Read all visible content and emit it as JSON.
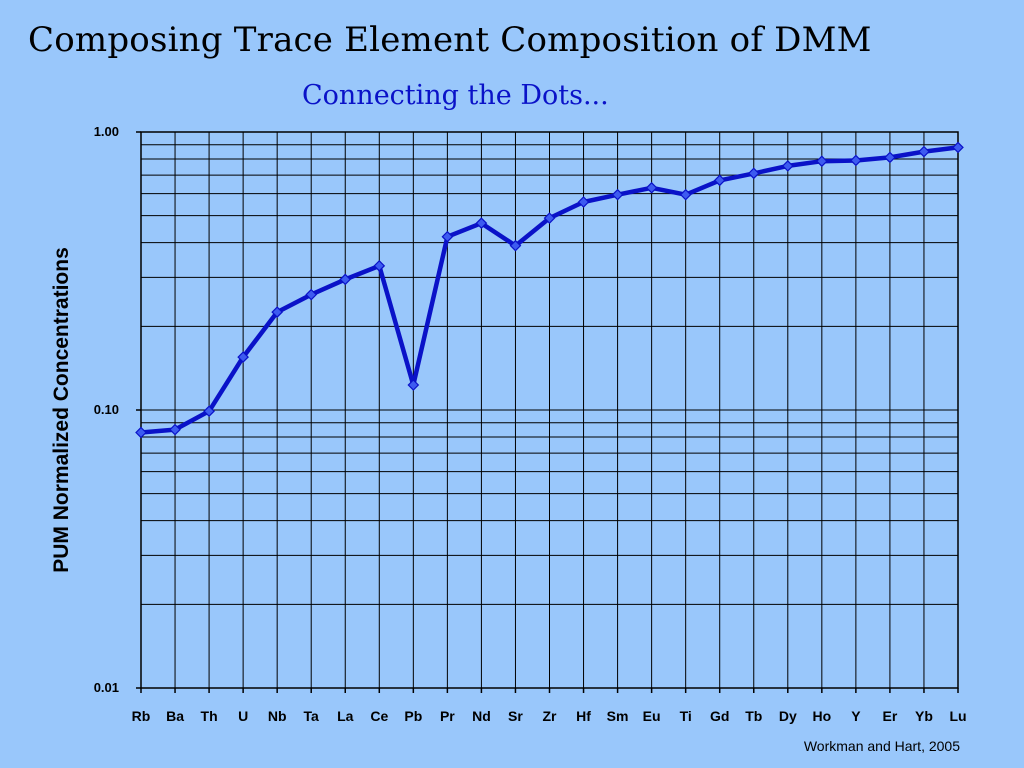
{
  "slide": {
    "title": "Composing Trace Element Composition of DMM",
    "subtitle": "Connecting the Dots...",
    "credit": "Workman and Hart, 2005"
  },
  "colors": {
    "background": "#99c7fb",
    "line": "#0a12c8",
    "marker_fill": "#3d5bf0",
    "grid": "#000000"
  },
  "chart_data": {
    "type": "line",
    "ylabel": "PUM Normalized Concentrations",
    "xlabel": "",
    "yscale": "log",
    "ylim": [
      0.01,
      1.0
    ],
    "yticks": [
      "0.01",
      "0.10",
      "1.00"
    ],
    "grid": true,
    "categories": [
      "Rb",
      "Ba",
      "Th",
      "U",
      "Nb",
      "Ta",
      "La",
      "Ce",
      "Pb",
      "Pr",
      "Nd",
      "Sr",
      "Zr",
      "Hf",
      "Sm",
      "Eu",
      "Ti",
      "Gd",
      "Tb",
      "Dy",
      "Ho",
      "Y",
      "Er",
      "Yb",
      "Lu"
    ],
    "series": [
      {
        "values": [
          0.083,
          0.085,
          0.099,
          0.155,
          0.225,
          0.26,
          0.295,
          0.33,
          0.123,
          0.42,
          0.47,
          0.39,
          0.49,
          0.56,
          0.595,
          0.63,
          0.595,
          0.67,
          0.71,
          0.755,
          0.785,
          0.79,
          0.81,
          0.85,
          0.88
        ]
      }
    ]
  }
}
